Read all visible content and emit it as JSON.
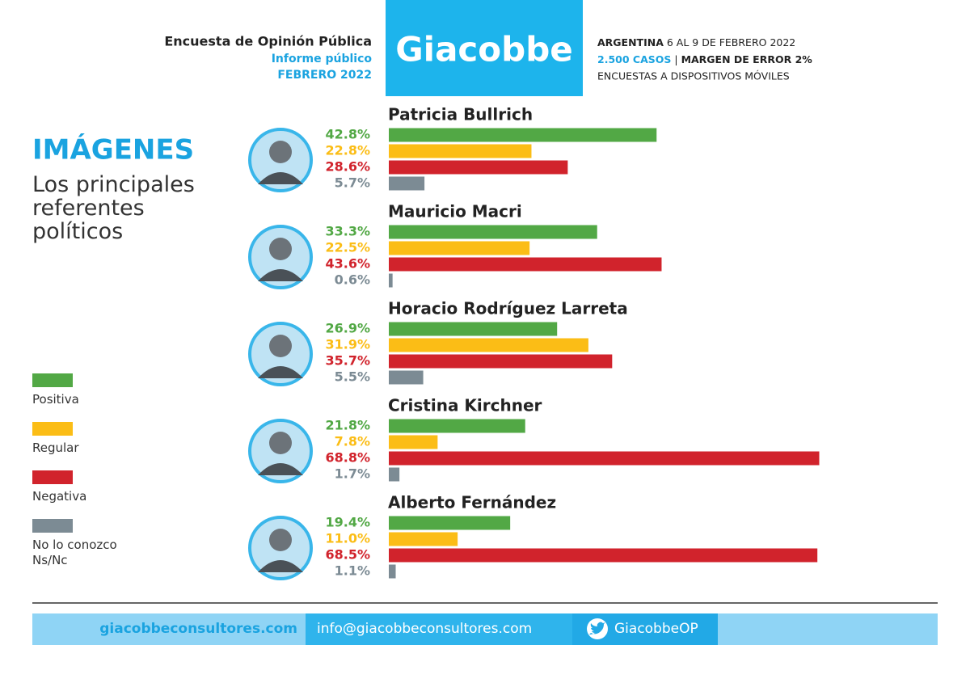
{
  "chart_data": {
    "type": "bar",
    "header": {
      "survey": "Encuesta de Opinión Pública",
      "report": "Informe público",
      "month": "FEBRERO 2022",
      "brand": "Giacobbe",
      "country": "ARGENTINA",
      "dates": "6 AL 9 DE FEBRERO 2022",
      "cases": "2.500 CASOS",
      "separator": "|",
      "margin": "MARGEN DE ERROR 2%",
      "method": "ENCUESTAS A DISPOSITIVOS MÓVILES"
    },
    "title": "IMÁGENES",
    "subtitle": "Los principales referentes políticos",
    "categories": [
      "Patricia Bullrich",
      "Mauricio Macri",
      "Horacio Rodríguez Larreta",
      "Cristina Kirchner",
      "Alberto Fernández"
    ],
    "series": [
      {
        "name": "Positiva",
        "color": "#52a845",
        "values": [
          42.8,
          33.3,
          26.9,
          21.8,
          19.4
        ],
        "value_labels": [
          "42.8%",
          "33.3%",
          "26.9%",
          "21.8%",
          "19.4%"
        ]
      },
      {
        "name": "Regular",
        "color": "#fbbd16",
        "values": [
          22.8,
          22.5,
          31.9,
          7.8,
          11.0
        ],
        "value_labels": [
          "22.8%",
          "22.5%",
          "31.9%",
          "7.8%",
          "11.0%"
        ]
      },
      {
        "name": "Negativa",
        "color": "#d1232c",
        "values": [
          28.6,
          43.6,
          35.7,
          68.8,
          68.5
        ],
        "value_labels": [
          "28.6%",
          "43.6%",
          "35.7%",
          "68.8%",
          "68.5%"
        ]
      },
      {
        "name": "No lo conozco Ns/Nc",
        "color": "#7c8b94",
        "values": [
          5.7,
          0.6,
          5.5,
          1.7,
          1.1
        ],
        "value_labels": [
          "5.7%",
          "0.6%",
          "5.5%",
          "1.7%",
          "1.1%"
        ]
      }
    ],
    "footer": {
      "web": "giacobbeconsultores.com",
      "email": "info@giacobbeconsultores.com",
      "twitter": "GiacobbeOP"
    }
  }
}
